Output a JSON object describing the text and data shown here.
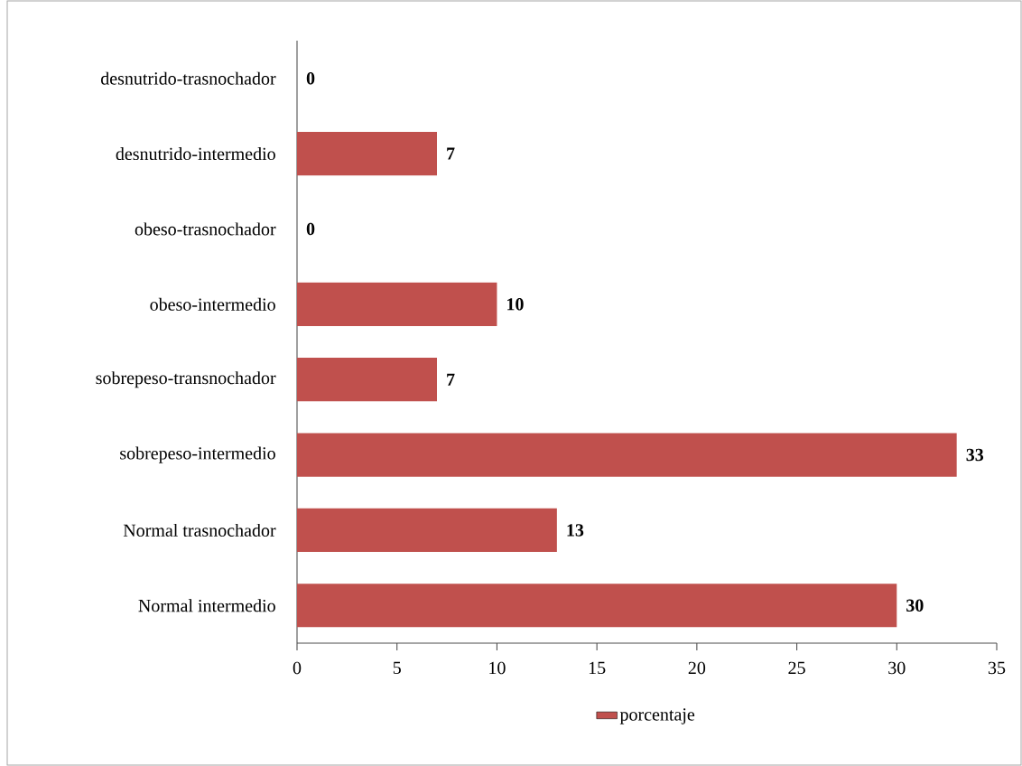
{
  "chart_data": {
    "type": "bar",
    "orientation": "horizontal",
    "categories": [
      "desnutrido-trasnochador",
      "desnutrido-intermedio",
      "obeso-trasnochador",
      "obeso-intermedio",
      "sobrepeso-transnochador",
      "sobrepeso-intermedio",
      "Normal trasnochador",
      "Normal intermedio"
    ],
    "series": [
      {
        "name": "porcentaje",
        "color": "#c0504d",
        "values": [
          0,
          7,
          0,
          10,
          7,
          33,
          13,
          30
        ]
      }
    ],
    "xlim": [
      0,
      35
    ],
    "xticks": [
      0,
      5,
      10,
      15,
      20,
      25,
      30,
      35
    ],
    "data_labels": true,
    "legend": "bottom"
  }
}
